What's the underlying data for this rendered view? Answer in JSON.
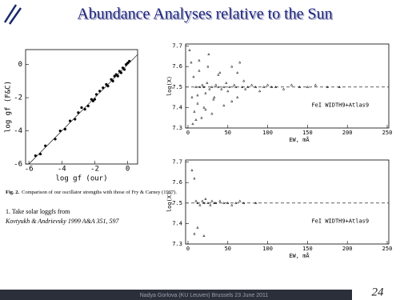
{
  "slide": {
    "title": "Abundance Analyses relative to the Sun",
    "caption_label": "Fig. 2.",
    "caption": "Comparison of our oscillator strengths with those of Fry & Carney (1997).",
    "note_1": "1. Take solar loggfs from",
    "note_2": "Kovtyukh & Andrievsky 1999 A&A 351, 597",
    "footer": "Nadya Gorlova (KU Leuven) Brussels 23 June 2011",
    "page_number": "24"
  },
  "chart_data": [
    {
      "type": "scatter",
      "x_label": "log gf (our)",
      "y_label": "log gf (F&C)",
      "diagonal": true,
      "color": "#000000",
      "xlim": [
        -6.2,
        0.6
      ],
      "ylim": [
        -6,
        0.9
      ],
      "xticks": [
        -6,
        -4,
        -2,
        0
      ],
      "yticks": [
        -6,
        -4,
        -2,
        0
      ],
      "x": [
        -5.6,
        -5.3,
        -5.0,
        -4.4,
        -4.1,
        -3.8,
        -3.5,
        -3.2,
        -3.0,
        -2.8,
        -2.6,
        -2.4,
        -2.2,
        -2.1,
        -2.0,
        -1.9,
        -1.7,
        -1.5,
        -1.3,
        -1.2,
        -1.0,
        -0.9,
        -0.8,
        -0.7,
        -0.6,
        -0.5,
        -0.4,
        -0.3,
        -0.2,
        -0.1,
        0.0,
        0.1
      ],
      "values": [
        -5.5,
        -5.4,
        -4.9,
        -4.5,
        -4.0,
        -3.9,
        -3.4,
        -3.3,
        -2.9,
        -2.6,
        -2.7,
        -2.5,
        -2.1,
        -2.2,
        -2.1,
        -1.8,
        -1.6,
        -1.4,
        -1.2,
        -1.3,
        -0.9,
        -1.0,
        -0.7,
        -0.6,
        -0.7,
        -0.4,
        -0.5,
        -0.2,
        -0.3,
        0.0,
        0.1,
        0.2
      ]
    },
    {
      "type": "scatter",
      "x_label": "EW, mÅ",
      "y_label": "log(X)",
      "annotation": "FeI WIDTH9+Atlas9",
      "reference_line": 7.5,
      "color": "#000000",
      "xlim": [
        -3,
        252
      ],
      "ylim": [
        7.3,
        7.71
      ],
      "xticks": [
        0,
        50,
        100,
        150,
        200,
        250
      ],
      "yticks": [
        7.3,
        7.4,
        7.5,
        7.6,
        7.7
      ],
      "x": [
        2,
        4,
        5,
        7,
        8,
        10,
        12,
        14,
        15,
        17,
        18,
        20,
        22,
        24,
        25,
        27,
        30,
        32,
        35,
        38,
        40,
        42,
        45,
        48,
        50,
        52,
        55,
        58,
        60,
        62,
        65,
        68,
        70,
        72,
        75,
        80,
        85,
        90,
        95,
        100,
        105,
        110,
        120,
        130,
        140,
        150,
        160,
        175,
        190,
        10,
        20,
        30,
        45,
        55,
        6,
        14,
        26,
        38,
        62,
        12,
        22,
        33
      ],
      "values": [
        7.68,
        7.62,
        7.45,
        7.55,
        7.38,
        7.5,
        7.42,
        7.58,
        7.5,
        7.35,
        7.51,
        7.5,
        7.47,
        7.52,
        7.6,
        7.49,
        7.5,
        7.44,
        7.51,
        7.5,
        7.57,
        7.49,
        7.5,
        7.52,
        7.48,
        7.5,
        7.6,
        7.51,
        7.5,
        7.45,
        7.62,
        7.5,
        7.53,
        7.49,
        7.5,
        7.51,
        7.5,
        7.48,
        7.5,
        7.51,
        7.5,
        7.5,
        7.49,
        7.51,
        7.5,
        7.5,
        7.51,
        7.5,
        7.5,
        7.34,
        7.4,
        7.37,
        7.41,
        7.43,
        7.32,
        7.63,
        7.66,
        7.56,
        7.57,
        7.46,
        7.39,
        7.45
      ]
    },
    {
      "type": "scatter",
      "x_label": "EW, mÅ",
      "y_label": "log(X)",
      "annotation": "FeI WIDTH9+Atlas9",
      "reference_line": 7.5,
      "color": "#000000",
      "xlim": [
        -3,
        252
      ],
      "ylim": [
        7.3,
        7.71
      ],
      "xticks": [
        0,
        50,
        100,
        150,
        200,
        250
      ],
      "yticks": [
        7.3,
        7.4,
        7.5,
        7.6,
        7.7
      ],
      "x": [
        5,
        8,
        10,
        12,
        15,
        18,
        20,
        22,
        25,
        28,
        30,
        33,
        35,
        40,
        45,
        50,
        55,
        60,
        65,
        70,
        85,
        8,
        12,
        20
      ],
      "values": [
        7.66,
        7.62,
        7.51,
        7.5,
        7.49,
        7.51,
        7.5,
        7.52,
        7.5,
        7.49,
        7.51,
        7.5,
        7.5,
        7.51,
        7.5,
        7.5,
        7.49,
        7.5,
        7.51,
        7.5,
        7.5,
        7.35,
        7.38,
        7.34
      ]
    }
  ]
}
